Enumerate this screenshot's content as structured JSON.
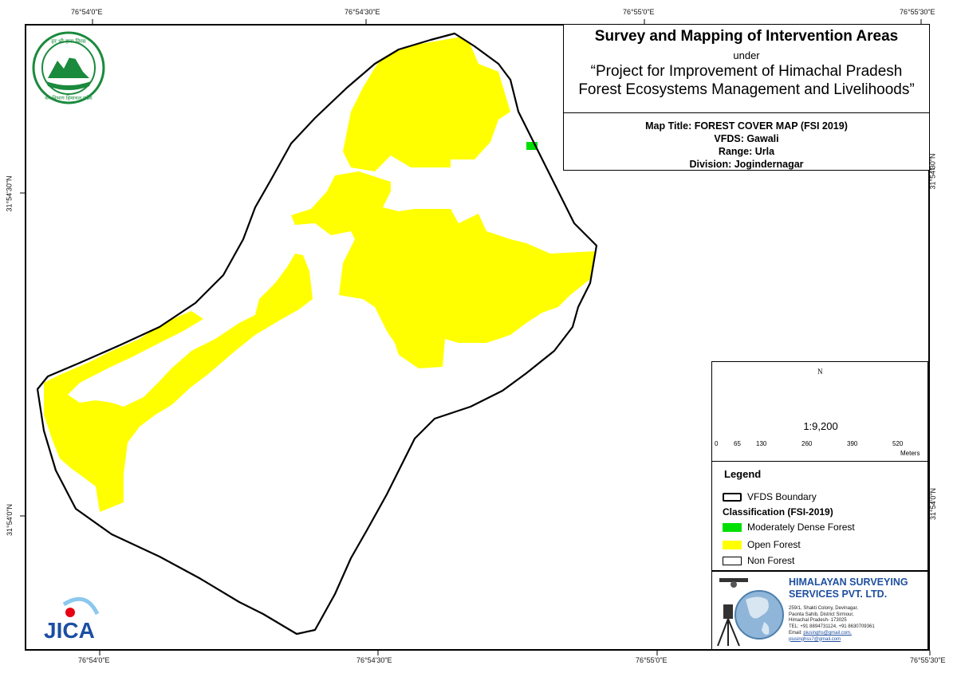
{
  "coordinates": {
    "top": [
      "76°54'0\"E",
      "76°54'30\"E",
      "76°55'0\"E",
      "76°55'30\"E"
    ],
    "bottom": [
      "76°54'0\"E",
      "76°54'30\"E",
      "76°55'0\"E",
      "76°55'30\"E"
    ],
    "left": [
      "31°54'30\"N",
      "31°54'0\"N"
    ],
    "right": [
      "31°54'30\"N",
      "31°54'0\"N"
    ]
  },
  "title": {
    "main": "Survey and Mapping of Intervention Areas",
    "under": "under",
    "project_line1": "“Project for Improvement of Himachal Pradesh",
    "project_line2": "Forest Ecosystems Management and Livelihoods”"
  },
  "map_info": {
    "map_title": "Map Title: FOREST COVER MAP (FSI 2019)",
    "vfds": "VFDS: Gawali",
    "range": "Range: Urla",
    "division": "Division: Jogindernagar"
  },
  "north_label": "N",
  "scale": {
    "ratio": "1:9,200",
    "ticks": [
      "0",
      "65",
      "130",
      "260",
      "390",
      "520"
    ],
    "unit": "Meters"
  },
  "legend": {
    "title": "Legend",
    "boundary_label": "VFDS Boundary",
    "classification_title": "Classification (FSI-2019)",
    "items": [
      {
        "label": "Moderately Dense Forest",
        "color": "#00e000"
      },
      {
        "label": "Open Forest",
        "color": "#ffff00"
      },
      {
        "label": "Non Forest",
        "color": "#ffffff"
      }
    ]
  },
  "company": {
    "name_line1": "HIMALAYAN SURVEYING",
    "name_line2": "SERVICES PVT. LTD.",
    "address": [
      "259/1, Shakti Colony, Devinagar,",
      "Paonta Sahib, District Sirmour,",
      "Himachal Pradesh- 173025",
      "TEL: +91 8894731124, +91 8630709361"
    ],
    "email_label": "Email:",
    "email1": "piusinghs@gmail.com,",
    "email2": "piusinghss7@gmail.com"
  },
  "logos": {
    "forest_dept_text": "हर भी हारा विरस कमल / वन विभाग हिमाचल प्रदेश",
    "jica": "JICA"
  },
  "colors": {
    "open_forest": "#ffff00",
    "moderately_dense_forest": "#00e000",
    "company_blue": "#1f4fa0",
    "forest_logo_green": "#1a8a3c",
    "jica_blue": "#1b4fa3"
  }
}
